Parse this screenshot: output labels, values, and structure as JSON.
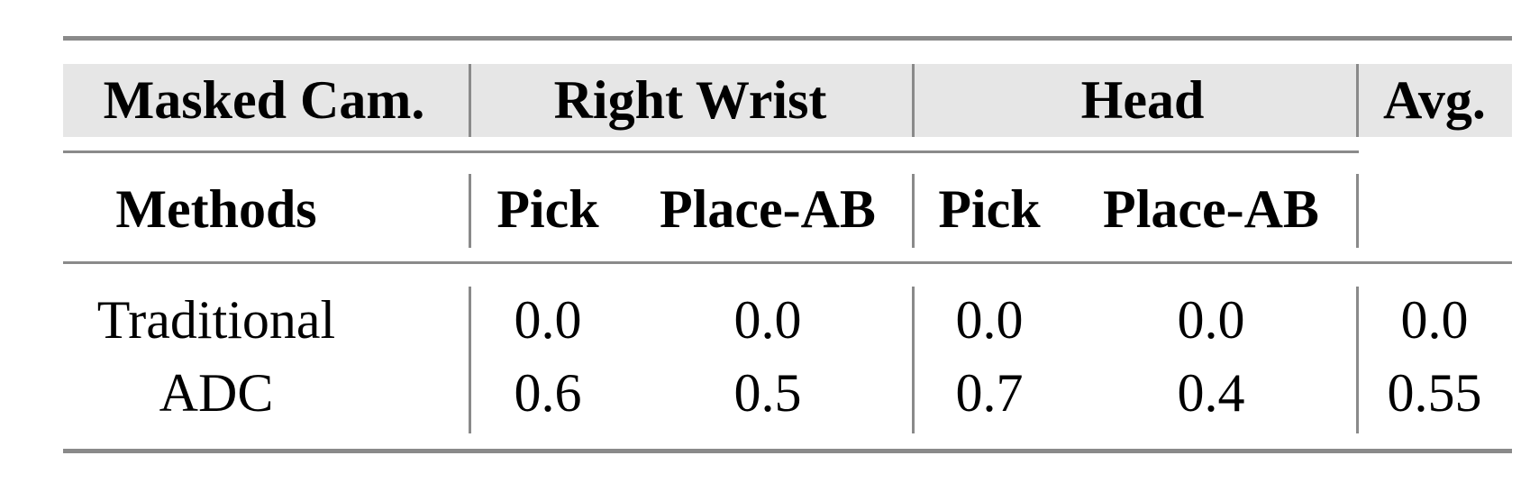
{
  "table": {
    "header_row1": {
      "label": "Masked Cam.",
      "groups": [
        "Right Wrist",
        "Head"
      ],
      "avg": "Avg."
    },
    "header_row2": {
      "label": "Methods",
      "columns": [
        "Pick",
        "Place-AB",
        "Pick",
        "Place-AB"
      ]
    },
    "rows": [
      {
        "method": "Traditional",
        "values": [
          "0.0",
          "0.0",
          "0.0",
          "0.0"
        ],
        "avg": "0.0"
      },
      {
        "method": "ADC",
        "values": [
          "0.6",
          "0.5",
          "0.7",
          "0.4"
        ],
        "avg": "0.55"
      }
    ],
    "colors": {
      "header_bg": "#e6e6e6",
      "rule": "#8a8a8a"
    }
  }
}
